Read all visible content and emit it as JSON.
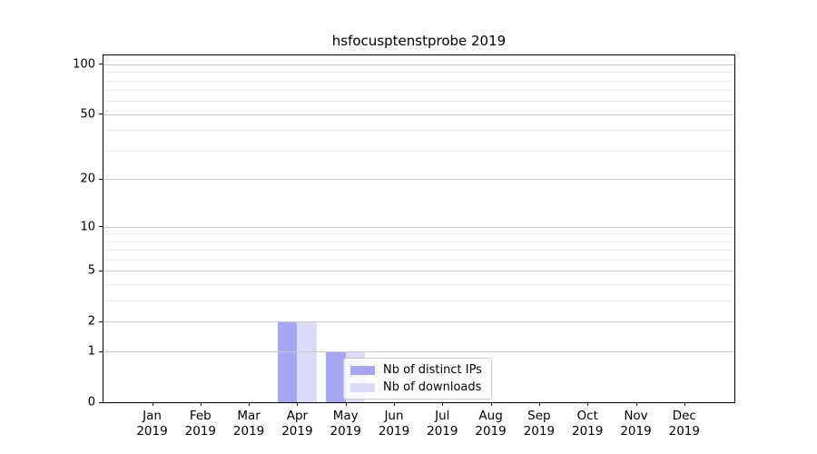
{
  "chart_data": {
    "type": "bar",
    "title": "hsfocusptenstprobe 2019",
    "categories": [
      "Jan",
      "Feb",
      "Mar",
      "Apr",
      "May",
      "Jun",
      "Jul",
      "Aug",
      "Sep",
      "Oct",
      "Nov",
      "Dec"
    ],
    "category_year": "2019",
    "series": [
      {
        "name": "Nb of distinct IPs",
        "color": "#a6a6f2",
        "values": [
          0,
          0,
          0,
          2,
          1,
          0,
          0,
          0,
          0,
          0,
          0,
          0
        ]
      },
      {
        "name": "Nb of downloads",
        "color": "#dbdbf8",
        "values": [
          0,
          0,
          0,
          2,
          1,
          0,
          0,
          0,
          0,
          0,
          0,
          0
        ]
      }
    ],
    "yscale": "log1p",
    "ylim": [
      0,
      113
    ],
    "y_ticks": [
      0,
      1,
      2,
      5,
      10,
      20,
      50,
      100
    ],
    "y_minor_gridlines": [
      3,
      4,
      6,
      7,
      8,
      9,
      30,
      40,
      60,
      70,
      80,
      90
    ],
    "grid": "horizontal",
    "legend_position": "lower-center-inside",
    "xlabel": "",
    "ylabel": ""
  },
  "colors": {
    "axis": "#000000",
    "major_grid": "#c9c9c9",
    "minor_grid": "#ececec",
    "legend_border": "#cccccc",
    "background": "#ffffff"
  }
}
